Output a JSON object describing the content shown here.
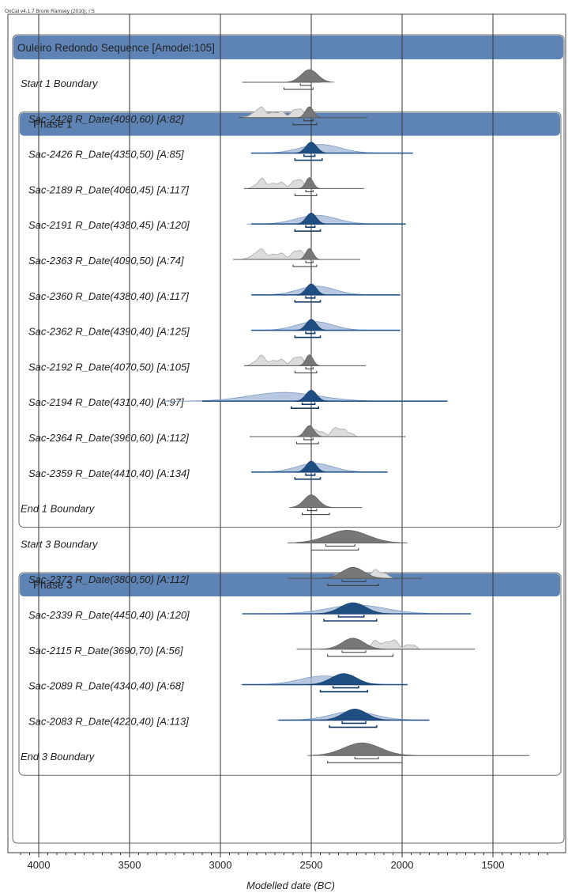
{
  "header": "OxCal v4.1.7 Bronk Ramsey (2010); r:5",
  "chart_data": {
    "type": "oxcal-multiplot",
    "xlabel": "Modelled date (BC)",
    "x_ticks": [
      4000,
      3500,
      3000,
      2500,
      2000,
      1500
    ],
    "xlim": [
      4100,
      1200
    ],
    "sequence": {
      "label": "Ouleiro Redondo Sequence [Amodel:105]"
    },
    "phases": [
      {
        "label": "Phase 1",
        "first_row": 2,
        "last_row": 12
      },
      {
        "label": "Phase 3",
        "first_row": 15,
        "last_row": 19
      }
    ],
    "rows": [
      {
        "label": "Start 1 Boundary",
        "type": "boundary",
        "post_peak": 2510,
        "post_sd": 45,
        "post_range": [
          2880,
          2450
        ],
        "r68": [
          2560,
          2500
        ],
        "r95": [
          2650,
          2490
        ]
      },
      {
        "label": "Sac-2428 R_Date(4090,60) [A:82]",
        "type": "rdate",
        "prior_center": 2700,
        "prior_sd": 160,
        "prior_range": [
          2880,
          2500
        ],
        "multimodal": true,
        "post_peak": 2510,
        "post_sd": 22,
        "post_range": [
          2900,
          2190
        ],
        "r68": [
          2540,
          2490
        ],
        "r95": [
          2600,
          2470
        ]
      },
      {
        "label": "Sac-2426 R_Date(4350,50) [A:85]",
        "type": "rdate",
        "prior_center": 2450,
        "prior_sd": 110,
        "post_peak": 2500,
        "post_sd": 30,
        "post_range": [
          2830,
          1940
        ],
        "r68": [
          2540,
          2480
        ],
        "r95": [
          2590,
          2440
        ]
      },
      {
        "label": "Sac-2189 R_Date(4060,45) [A:117]",
        "type": "rdate",
        "prior_center": 2700,
        "prior_sd": 160,
        "prior_range": [
          2850,
          2500
        ],
        "multimodal": true,
        "post_peak": 2510,
        "post_sd": 20,
        "post_range": [
          2870,
          2210
        ],
        "r68": [
          2530,
          2490
        ],
        "r95": [
          2590,
          2470
        ]
      },
      {
        "label": "Sac-2191 R_Date(4380,45) [A:120]",
        "type": "rdate",
        "prior_center": 2470,
        "prior_sd": 110,
        "post_peak": 2500,
        "post_sd": 28,
        "post_range": [
          2830,
          1980
        ],
        "r68": [
          2530,
          2480
        ],
        "r95": [
          2590,
          2450
        ]
      },
      {
        "label": "Sac-2363 R_Date(4090,50) [A:74]",
        "type": "rdate",
        "prior_center": 2700,
        "prior_sd": 160,
        "prior_range": [
          2880,
          2500
        ],
        "multimodal": true,
        "post_peak": 2510,
        "post_sd": 20,
        "post_range": [
          2930,
          2230
        ],
        "r68": [
          2530,
          2490
        ],
        "r95": [
          2600,
          2470
        ]
      },
      {
        "label": "Sac-2360 R_Date(4380,40) [A:117]",
        "type": "rdate",
        "prior_center": 2470,
        "prior_sd": 100,
        "post_peak": 2500,
        "post_sd": 28,
        "post_range": [
          2830,
          2010
        ],
        "r68": [
          2530,
          2480
        ],
        "r95": [
          2590,
          2450
        ]
      },
      {
        "label": "Sac-2362 R_Date(4390,40) [A:125]",
        "type": "rdate",
        "prior_center": 2480,
        "prior_sd": 100,
        "post_peak": 2500,
        "post_sd": 28,
        "post_range": [
          2830,
          2010
        ],
        "r68": [
          2530,
          2480
        ],
        "r95": [
          2590,
          2450
        ]
      },
      {
        "label": "Sac-2192 R_Date(4070,50) [A:105]",
        "type": "rdate",
        "prior_center": 2700,
        "prior_sd": 160,
        "prior_range": [
          2860,
          2500
        ],
        "multimodal": true,
        "post_peak": 2510,
        "post_sd": 20,
        "post_range": [
          2870,
          2200
        ],
        "r68": [
          2530,
          2490
        ],
        "r95": [
          2590,
          2470
        ]
      },
      {
        "label": "Sac-2194 R_Date(4310,40) [A:97]",
        "type": "rdate",
        "prior_center": 2650,
        "prior_sd": 190,
        "post_peak": 2500,
        "post_sd": 30,
        "post_range": [
          3100,
          1750
        ],
        "r68": [
          2550,
          2480
        ],
        "r95": [
          2610,
          2460
        ]
      },
      {
        "label": "Sac-2364 R_Date(3960,60) [A:112]",
        "type": "rdate",
        "prior_center": 2400,
        "prior_sd": 130,
        "prior_range": [
          2560,
          2250
        ],
        "multimodal": true,
        "post_peak": 2510,
        "post_sd": 25,
        "post_range": [
          2840,
          1980
        ],
        "r68": [
          2540,
          2490
        ],
        "r95": [
          2580,
          2460
        ]
      },
      {
        "label": "Sac-2359 R_Date(4410,40) [A:134]",
        "type": "rdate",
        "prior_center": 2480,
        "prior_sd": 100,
        "post_peak": 2500,
        "post_sd": 28,
        "post_range": [
          2830,
          2080
        ],
        "r68": [
          2530,
          2480
        ],
        "r95": [
          2590,
          2450
        ]
      },
      {
        "label": "End 1 Boundary",
        "type": "boundary",
        "post_peak": 2500,
        "post_sd": 40,
        "post_range": [
          2590,
          2220
        ],
        "r68": [
          2520,
          2470
        ],
        "r95": [
          2550,
          2400
        ]
      },
      {
        "label": "Start 3 Boundary",
        "type": "boundary",
        "post_peak": 2300,
        "post_sd": 110,
        "post_range": [
          2580,
          2080
        ],
        "r68": [
          2420,
          2260
        ],
        "r95": [
          2500,
          2240
        ]
      },
      {
        "label": "Sac-2372 R_Date(3800,50) [A:112]",
        "type": "rdate",
        "prior_center": 2250,
        "prior_sd": 120,
        "prior_range": [
          2400,
          2050
        ],
        "multimodal": true,
        "post_peak": 2270,
        "post_sd": 60,
        "post_range": [
          2630,
          1890
        ],
        "r68": [
          2330,
          2200
        ],
        "r95": [
          2410,
          2130
        ]
      },
      {
        "label": "Sac-2339 R_Date(4450,40) [A:120]",
        "type": "rdate",
        "prior_center": 2250,
        "prior_sd": 160,
        "post_peak": 2270,
        "post_sd": 70,
        "post_range": [
          2880,
          1620
        ],
        "r68": [
          2350,
          2210
        ],
        "r95": [
          2430,
          2140
        ]
      },
      {
        "label": "Sac-2115 R_Date(3690,70) [A:56]",
        "type": "rdate",
        "prior_center": 2050,
        "prior_sd": 150,
        "prior_range": [
          2300,
          1900
        ],
        "multimodal": true,
        "post_peak": 2270,
        "post_sd": 60,
        "post_range": [
          2580,
          1600
        ],
        "r68": [
          2330,
          2200
        ],
        "r95": [
          2410,
          2050
        ]
      },
      {
        "label": "Sac-2089 R_Date(4340,40) [A:68]",
        "type": "rdate",
        "prior_center": 2430,
        "prior_sd": 130,
        "post_peak": 2320,
        "post_sd": 70,
        "post_range": [
          2880,
          1970
        ],
        "r68": [
          2380,
          2240
        ],
        "r95": [
          2450,
          2190
        ]
      },
      {
        "label": "Sac-2083 R_Date(4220,40) [A:113]",
        "type": "rdate",
        "prior_center": 2270,
        "prior_sd": 120,
        "post_peak": 2260,
        "post_sd": 65,
        "post_range": [
          2680,
          1850
        ],
        "r68": [
          2330,
          2200
        ],
        "r95": [
          2400,
          2140
        ]
      },
      {
        "label": "End 3 Boundary",
        "type": "boundary",
        "post_peak": 2220,
        "post_sd": 100,
        "post_range": [
          2420,
          1300
        ],
        "r68": [
          2260,
          2130
        ],
        "r95": [
          2410,
          2000
        ]
      }
    ]
  }
}
